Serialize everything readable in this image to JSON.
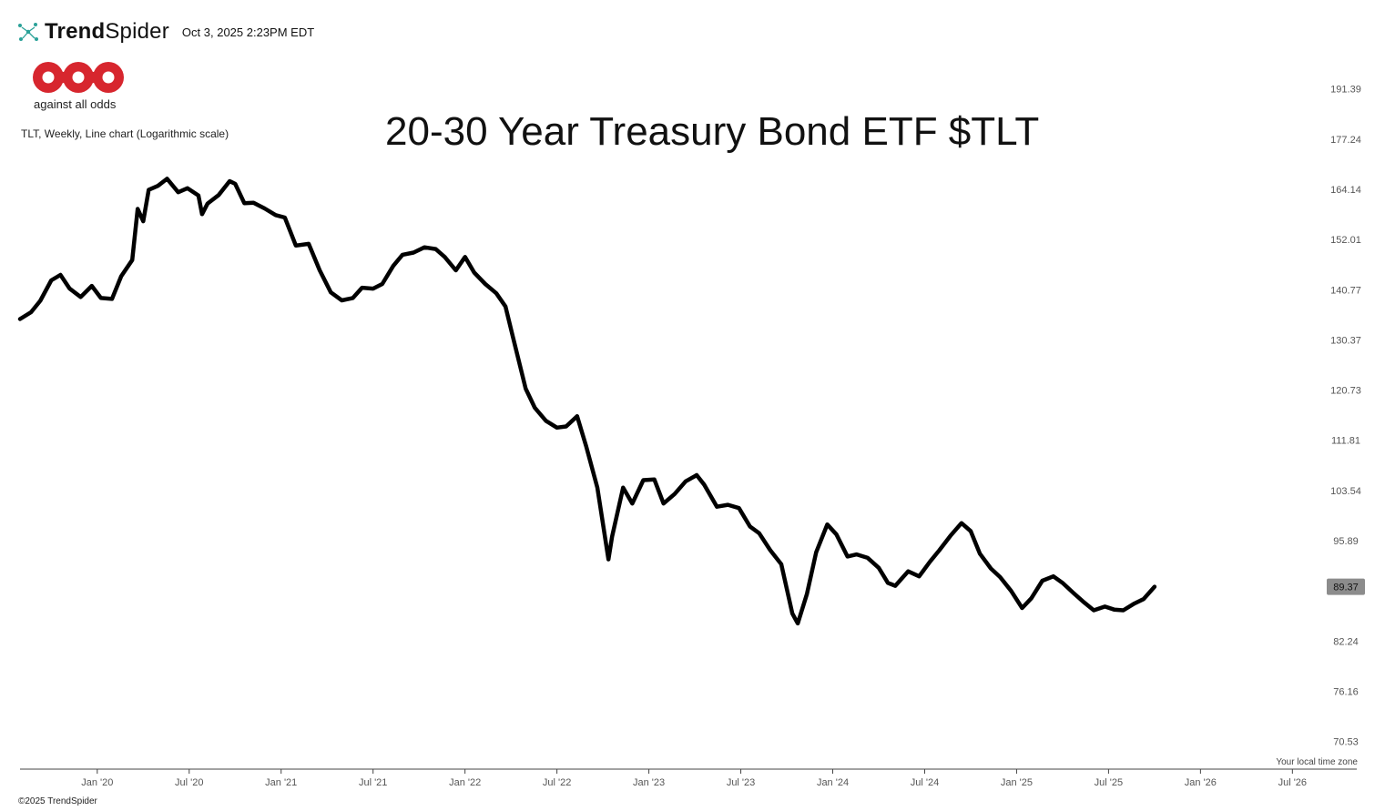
{
  "header": {
    "brand_bold": "Trend",
    "brand_regular": "Spider",
    "timestamp": "Oct 3, 2025 2:23PM EDT"
  },
  "logo": {
    "name": "aao",
    "tagline": "against all odds"
  },
  "chart_desc": "TLT, Weekly, Line chart (Logarithmic scale)",
  "footer": {
    "copyright": "©2025 TrendSpider",
    "timezone_note": "Your local time zone"
  },
  "colors": {
    "line": "#000000",
    "badge_bg": "#8c8c8c",
    "logo_red": "#d7262e",
    "brand_teal": "#2aa198"
  },
  "chart_data": {
    "type": "line",
    "title": "20-30 Year Treasury Bond ETF $TLT",
    "xlabel": "",
    "ylabel": "",
    "scale": "log",
    "grid": false,
    "y_ticks": [
      191.39,
      177.24,
      164.14,
      152.01,
      140.77,
      130.37,
      120.73,
      111.81,
      103.54,
      95.89,
      82.24,
      76.16,
      70.53
    ],
    "ylim": [
      67.8,
      198.9
    ],
    "x_ticks": [
      "Jan '20",
      "Jul '20",
      "Jan '21",
      "Jul '21",
      "Jan '22",
      "Jul '22",
      "Jan '23",
      "Jul '23",
      "Jan '24",
      "Jul '24",
      "Jan '25",
      "Jul '25",
      "Jan '26",
      "Jul '26"
    ],
    "last_value": "89.37",
    "series": [
      {
        "values": [
          [
            2019.58,
            134.6
          ],
          [
            2019.64,
            136.0
          ],
          [
            2019.69,
            138.4
          ],
          [
            2019.75,
            142.8
          ],
          [
            2019.8,
            144.0
          ],
          [
            2019.85,
            141.0
          ],
          [
            2019.91,
            139.2
          ],
          [
            2019.97,
            141.6
          ],
          [
            2020.02,
            139.0
          ],
          [
            2020.08,
            138.8
          ],
          [
            2020.13,
            143.7
          ],
          [
            2020.19,
            147.3
          ],
          [
            2020.22,
            159.3
          ],
          [
            2020.25,
            156.3
          ],
          [
            2020.28,
            164.0
          ],
          [
            2020.33,
            165.0
          ],
          [
            2020.38,
            166.8
          ],
          [
            2020.44,
            163.4
          ],
          [
            2020.49,
            164.4
          ],
          [
            2020.55,
            162.6
          ],
          [
            2020.57,
            158.0
          ],
          [
            2020.6,
            160.6
          ],
          [
            2020.66,
            162.7
          ],
          [
            2020.72,
            166.2
          ],
          [
            2020.75,
            165.5
          ],
          [
            2020.8,
            160.7
          ],
          [
            2020.85,
            160.8
          ],
          [
            2020.91,
            159.4
          ],
          [
            2020.97,
            157.8
          ],
          [
            2021.02,
            157.2
          ],
          [
            2021.08,
            150.6
          ],
          [
            2021.15,
            151.0
          ],
          [
            2021.21,
            145.0
          ],
          [
            2021.27,
            140.2
          ],
          [
            2021.33,
            138.5
          ],
          [
            2021.39,
            139.0
          ],
          [
            2021.44,
            141.2
          ],
          [
            2021.5,
            141.0
          ],
          [
            2021.55,
            142.0
          ],
          [
            2021.61,
            146.0
          ],
          [
            2021.66,
            148.5
          ],
          [
            2021.72,
            149.0
          ],
          [
            2021.78,
            150.2
          ],
          [
            2021.84,
            149.8
          ],
          [
            2021.89,
            148.0
          ],
          [
            2021.95,
            145.0
          ],
          [
            2022.0,
            148.0
          ],
          [
            2022.05,
            144.5
          ],
          [
            2022.11,
            142.0
          ],
          [
            2022.17,
            140.0
          ],
          [
            2022.22,
            137.2
          ],
          [
            2022.26,
            131.0
          ],
          [
            2022.33,
            121.0
          ],
          [
            2022.38,
            117.5
          ],
          [
            2022.44,
            115.2
          ],
          [
            2022.5,
            114.0
          ],
          [
            2022.55,
            114.2
          ],
          [
            2022.61,
            116.0
          ],
          [
            2022.66,
            110.7
          ],
          [
            2022.72,
            104.0
          ],
          [
            2022.78,
            93.2
          ],
          [
            2022.8,
            96.5
          ],
          [
            2022.86,
            104.0
          ],
          [
            2022.91,
            101.5
          ],
          [
            2022.97,
            105.2
          ],
          [
            2023.03,
            105.3
          ],
          [
            2023.08,
            101.5
          ],
          [
            2023.14,
            103.0
          ],
          [
            2023.2,
            105.0
          ],
          [
            2023.26,
            106.0
          ],
          [
            2023.3,
            104.5
          ],
          [
            2023.37,
            101.0
          ],
          [
            2023.43,
            101.3
          ],
          [
            2023.49,
            100.8
          ],
          [
            2023.55,
            98.0
          ],
          [
            2023.6,
            97.0
          ],
          [
            2023.66,
            94.5
          ],
          [
            2023.72,
            92.5
          ],
          [
            2023.78,
            85.8
          ],
          [
            2023.81,
            84.5
          ],
          [
            2023.86,
            88.4
          ],
          [
            2023.91,
            94.2
          ],
          [
            2023.97,
            98.3
          ],
          [
            2024.02,
            96.8
          ],
          [
            2024.08,
            93.6
          ],
          [
            2024.13,
            93.9
          ],
          [
            2024.19,
            93.4
          ],
          [
            2024.25,
            92.0
          ],
          [
            2024.3,
            89.9
          ],
          [
            2024.34,
            89.5
          ],
          [
            2024.41,
            91.5
          ],
          [
            2024.47,
            90.8
          ],
          [
            2024.53,
            92.9
          ],
          [
            2024.58,
            94.5
          ],
          [
            2024.64,
            96.6
          ],
          [
            2024.7,
            98.5
          ],
          [
            2024.75,
            97.3
          ],
          [
            2024.8,
            94.0
          ],
          [
            2024.86,
            91.9
          ],
          [
            2024.91,
            90.7
          ],
          [
            2024.97,
            88.8
          ],
          [
            2025.03,
            86.5
          ],
          [
            2025.08,
            87.8
          ],
          [
            2025.14,
            90.2
          ],
          [
            2025.2,
            90.8
          ],
          [
            2025.25,
            89.9
          ],
          [
            2025.31,
            88.5
          ],
          [
            2025.36,
            87.4
          ],
          [
            2025.42,
            86.2
          ],
          [
            2025.48,
            86.7
          ],
          [
            2025.53,
            86.3
          ],
          [
            2025.58,
            86.2
          ],
          [
            2025.64,
            87.1
          ],
          [
            2025.69,
            87.7
          ],
          [
            2025.75,
            89.37
          ]
        ]
      }
    ]
  }
}
